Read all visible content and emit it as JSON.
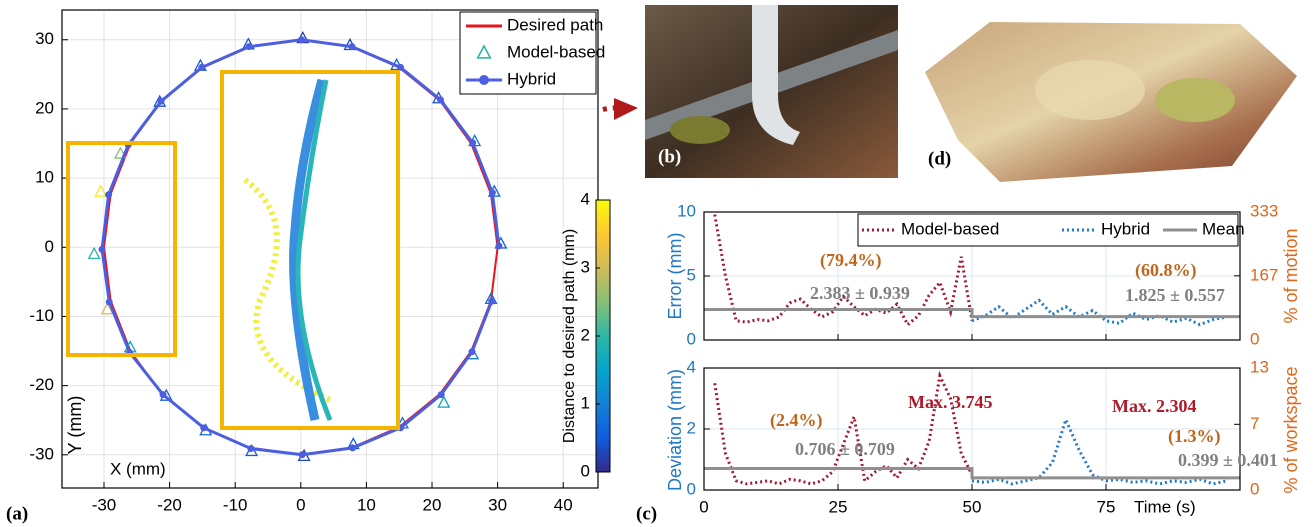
{
  "figure": {
    "panel_labels": [
      "(a)",
      "(b)",
      "(c)",
      "(d)"
    ]
  },
  "chart_data": [
    {
      "type": "scatter",
      "xlabel": "X (mm)",
      "ylabel": "Y (mm)",
      "xlim": [
        -36.4,
        45.3
      ],
      "ylim": [
        -34.8,
        34.3
      ],
      "xticks": [
        -30,
        -20,
        -10,
        0,
        10,
        20,
        30,
        40
      ],
      "yticks": [
        -30,
        -20,
        -10,
        0,
        10,
        20,
        30
      ],
      "grid": true,
      "legend": "upper right",
      "series": [
        {
          "name": "Desired path",
          "color": "#e8141c",
          "linestyle": "solid",
          "marker": "none",
          "x": [
            30,
            28.98,
            25.98,
            21.21,
            15,
            7.76,
            0,
            -7.76,
            -15,
            -21.21,
            -25.98,
            -28.98,
            -30,
            -28.98,
            -25.98,
            -21.21,
            -15,
            -7.76,
            0,
            7.76,
            15,
            21.21,
            25.98,
            28.98,
            30
          ],
          "values": [
            0,
            7.76,
            15,
            21.21,
            25.98,
            28.98,
            30,
            28.98,
            25.98,
            21.21,
            15,
            7.76,
            0,
            -7.76,
            -15,
            -21.21,
            -25.98,
            -28.98,
            -30,
            -28.98,
            -25.98,
            -21.21,
            -15,
            -7.76,
            0
          ]
        },
        {
          "name": "Model-based",
          "color": "#20b2aa",
          "linestyle": "none",
          "marker": "triangle",
          "x": [
            30.5,
            29.5,
            26.5,
            21.0,
            14.6,
            7.5,
            0.3,
            -8.0,
            -15.3,
            -21.5,
            -27.5,
            -30.5,
            -31.5,
            -29.5,
            -26.0,
            -20.5,
            -14.5,
            -7.5,
            0.5,
            8.0,
            15.5,
            21.8,
            26.2,
            29.0
          ],
          "values": [
            0.5,
            8.0,
            15.3,
            21.5,
            26.3,
            29.2,
            30.2,
            29.3,
            26.2,
            21.0,
            13.5,
            8.0,
            -1.0,
            -9.0,
            -14.5,
            -21.5,
            -26.5,
            -29.5,
            -30.2,
            -28.5,
            -25.5,
            -22.5,
            -15.5,
            -7.5
          ],
          "distance": [
            0.5,
            0.6,
            0.8,
            0.4,
            0.5,
            0.3,
            0.2,
            0.4,
            0.5,
            0.4,
            2.5,
            3.8,
            2.0,
            3.0,
            1.5,
            0.6,
            0.7,
            0.5,
            0.3,
            0.6,
            0.8,
            1.5,
            0.9,
            0.7
          ]
        },
        {
          "name": "Hybrid",
          "color": "#4b5fe0",
          "linestyle": "solid",
          "marker": "circle",
          "x": [
            30.2,
            29.2,
            26.2,
            21.3,
            15.2,
            7.8,
            0.1,
            -7.9,
            -15.1,
            -21.3,
            -26.3,
            -29.3,
            -30.3,
            -29.2,
            -26.1,
            -21.0,
            -14.8,
            -7.6,
            0.2,
            7.9,
            15.2,
            21.4,
            26.1,
            29.1
          ],
          "values": [
            0.2,
            7.9,
            15.1,
            21.3,
            26.0,
            29.0,
            30.0,
            29.0,
            26.0,
            21.1,
            14.8,
            7.6,
            -0.3,
            -7.9,
            -15.2,
            -21.3,
            -26.1,
            -29.1,
            -30.0,
            -29.0,
            -26.1,
            -21.3,
            -15.1,
            -7.8
          ]
        }
      ],
      "colorbar": {
        "label": "Distance to desired path (mm)",
        "lim": [
          0,
          4
        ],
        "ticks": [
          0,
          1,
          2,
          3,
          4
        ],
        "colors": [
          "#352a87",
          "#0f5cdd",
          "#1481d6",
          "#06a4ca",
          "#2eb7a4",
          "#87bf77",
          "#d1bb59",
          "#fec832",
          "#f9fb0e"
        ]
      }
    },
    {
      "type": "line",
      "ylabel": "Error (mm)",
      "ylabel_color": "#1f78c8",
      "y2label": "% of motion",
      "y2color": "#e0661a",
      "xlim": [
        0,
        100
      ],
      "xticks": [
        0,
        25,
        50,
        75
      ],
      "xtick_labels": false,
      "ylim": [
        0,
        10
      ],
      "yticks": [
        0,
        5,
        10
      ],
      "y2lim": [
        0,
        333
      ],
      "y2ticks": [
        0,
        167,
        333
      ],
      "grid": true,
      "legend": "upper right",
      "series": [
        {
          "name": "Model-based",
          "color": "#a0192f",
          "linestyle": "dotted",
          "x": [
            2,
            4,
            6,
            8,
            10,
            12,
            14,
            16,
            18,
            20,
            22,
            24,
            26,
            28,
            30,
            32,
            34,
            36,
            38,
            40,
            42,
            44,
            46,
            48,
            50
          ],
          "values": [
            9.8,
            5,
            1.5,
            1.4,
            1.6,
            1.5,
            1.8,
            2.9,
            3.2,
            2.4,
            1.8,
            2.2,
            3.4,
            2.6,
            1.9,
            2.4,
            2.1,
            2.8,
            1.2,
            1.9,
            3.5,
            4.5,
            2.2,
            6.5,
            1.5
          ]
        },
        {
          "name": "Hybrid",
          "color": "#1f78c8",
          "linestyle": "dotted",
          "x": [
            50,
            52.5,
            55,
            57.5,
            60,
            62.5,
            65,
            67.5,
            70,
            72.5,
            75,
            77.5,
            80,
            82.5,
            85,
            87.5,
            90,
            92.5,
            95,
            97.5
          ],
          "values": [
            1.5,
            1.9,
            2.6,
            1.7,
            2.4,
            3.1,
            2.0,
            2.6,
            1.8,
            2.3,
            1.5,
            1.3,
            2.1,
            1.6,
            1.9,
            1.4,
            1.7,
            1.2,
            1.6,
            1.8
          ]
        },
        {
          "name": "Mean",
          "color": "#8f8f8f",
          "linestyle": "solid",
          "x": [
            0,
            50,
            50,
            100
          ],
          "values": [
            2.383,
            2.383,
            1.825,
            1.825
          ]
        }
      ],
      "annotations": [
        {
          "text": "(79.4%)",
          "color": "#c0651c"
        },
        {
          "text": "2.383 ± 0.939",
          "color": "#808080"
        },
        {
          "text": "(60.8%)",
          "color": "#c0651c"
        },
        {
          "text": "1.825 ± 0.557",
          "color": "#808080"
        }
      ]
    },
    {
      "type": "line",
      "xlabel": "Time (s)",
      "ylabel": "Deviation (mm)",
      "ylabel_color": "#1f78c8",
      "y2label": "% of workspace",
      "y2color": "#e0661a",
      "xlim": [
        0,
        100
      ],
      "xticks": [
        0,
        25,
        50,
        75
      ],
      "ylim": [
        0,
        4
      ],
      "yticks": [
        0,
        2,
        4
      ],
      "y2lim": [
        0,
        13
      ],
      "y2ticks": [
        0,
        7,
        13
      ],
      "grid": true,
      "series": [
        {
          "color": "#a0192f",
          "linestyle": "dotted",
          "x": [
            2,
            4,
            6,
            8,
            10,
            12,
            14,
            16,
            18,
            20,
            22,
            24,
            26,
            28,
            30,
            32,
            34,
            36,
            38,
            40,
            42,
            44,
            46,
            48,
            50
          ],
          "values": [
            3.5,
            1.2,
            0.3,
            0.2,
            0.25,
            0.3,
            0.2,
            0.35,
            0.3,
            0.2,
            0.3,
            0.6,
            1.5,
            2.4,
            0.3,
            0.6,
            0.8,
            0.4,
            1.0,
            0.7,
            1.6,
            3.745,
            3.0,
            1.2,
            0.5
          ]
        },
        {
          "color": "#1f78c8",
          "linestyle": "dotted",
          "x": [
            50,
            52.5,
            55,
            57.5,
            60,
            62.5,
            65,
            67.5,
            70,
            72.5,
            75,
            77.5,
            80,
            82.5,
            85,
            87.5,
            90,
            92.5,
            95,
            97.5
          ],
          "values": [
            0.3,
            0.25,
            0.35,
            0.2,
            0.3,
            0.4,
            0.9,
            2.304,
            1.3,
            0.5,
            0.3,
            0.35,
            0.25,
            0.3,
            0.2,
            0.3,
            0.25,
            0.35,
            0.2,
            0.3
          ]
        },
        {
          "color": "#8f8f8f",
          "linestyle": "solid",
          "x": [
            0,
            50,
            50,
            100
          ],
          "values": [
            0.706,
            0.706,
            0.399,
            0.399
          ]
        }
      ],
      "annotations": [
        {
          "text": "(2.4%)",
          "color": "#c0651c"
        },
        {
          "text": "0.706 ± 0.709",
          "color": "#808080"
        },
        {
          "text": "Max. 3.745",
          "color": "#b01a2a"
        },
        {
          "text": "Max. 2.304",
          "color": "#b01a2a"
        },
        {
          "text": "(1.3%)",
          "color": "#c0651c"
        },
        {
          "text": "0.399 ± 0.401",
          "color": "#808080"
        }
      ]
    }
  ]
}
